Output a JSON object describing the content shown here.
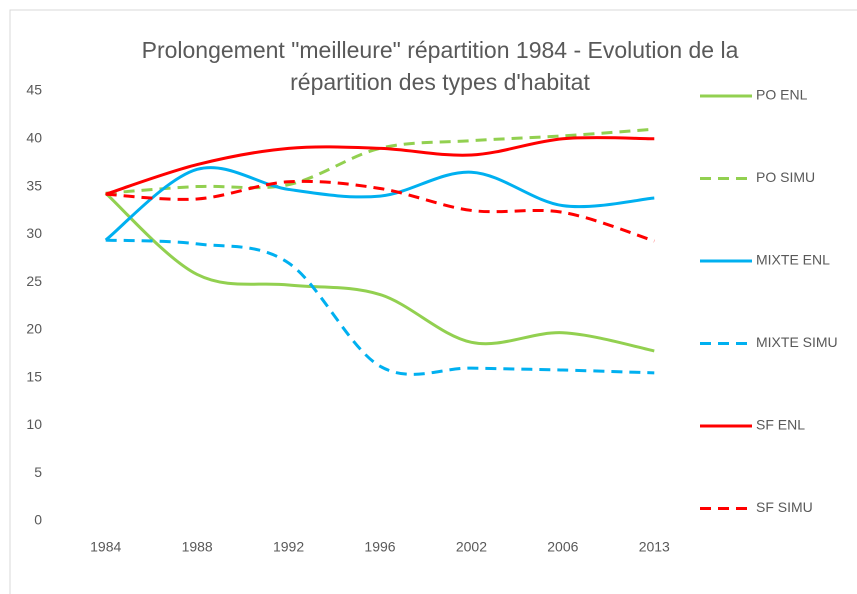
{
  "chart_data": {
    "type": "line",
    "title": "Prolongement \"meilleure\" répartition 1984 - Evolution de la répartition des types d'habitat",
    "categories": [
      "1984",
      "1988",
      "1992",
      "1996",
      "2002",
      "2006",
      "2013"
    ],
    "series": [
      {
        "name": "PO ENL",
        "color": "#92d050",
        "dash": false,
        "values": [
          34.3,
          25.8,
          24.7,
          23.7,
          18.7,
          19.7,
          17.8
        ]
      },
      {
        "name": "PO SIMU",
        "color": "#92d050",
        "dash": true,
        "values": [
          34.3,
          35.0,
          35.2,
          39.0,
          39.8,
          40.3,
          41.0
        ]
      },
      {
        "name": "MIXTE ENL",
        "color": "#00b0f0",
        "dash": false,
        "values": [
          29.4,
          36.8,
          34.7,
          34.0,
          36.5,
          33.0,
          33.8
        ]
      },
      {
        "name": "MIXTE SIMU",
        "color": "#00b0f0",
        "dash": true,
        "values": [
          29.4,
          29.0,
          27.0,
          16.2,
          16.0,
          15.8,
          15.5
        ]
      },
      {
        "name": "SF ENL",
        "color": "#ff0000",
        "dash": false,
        "values": [
          34.2,
          37.3,
          39.0,
          39.0,
          38.3,
          40.0,
          40.0
        ]
      },
      {
        "name": "SF SIMU",
        "color": "#ff0000",
        "dash": true,
        "values": [
          34.2,
          33.7,
          35.5,
          34.8,
          32.5,
          32.3,
          29.3
        ]
      }
    ],
    "ylim": [
      0,
      45
    ],
    "yticks": [
      0,
      5,
      10,
      15,
      20,
      25,
      30,
      35,
      40,
      45
    ],
    "grid": false,
    "smooth": true,
    "legend": "right"
  }
}
